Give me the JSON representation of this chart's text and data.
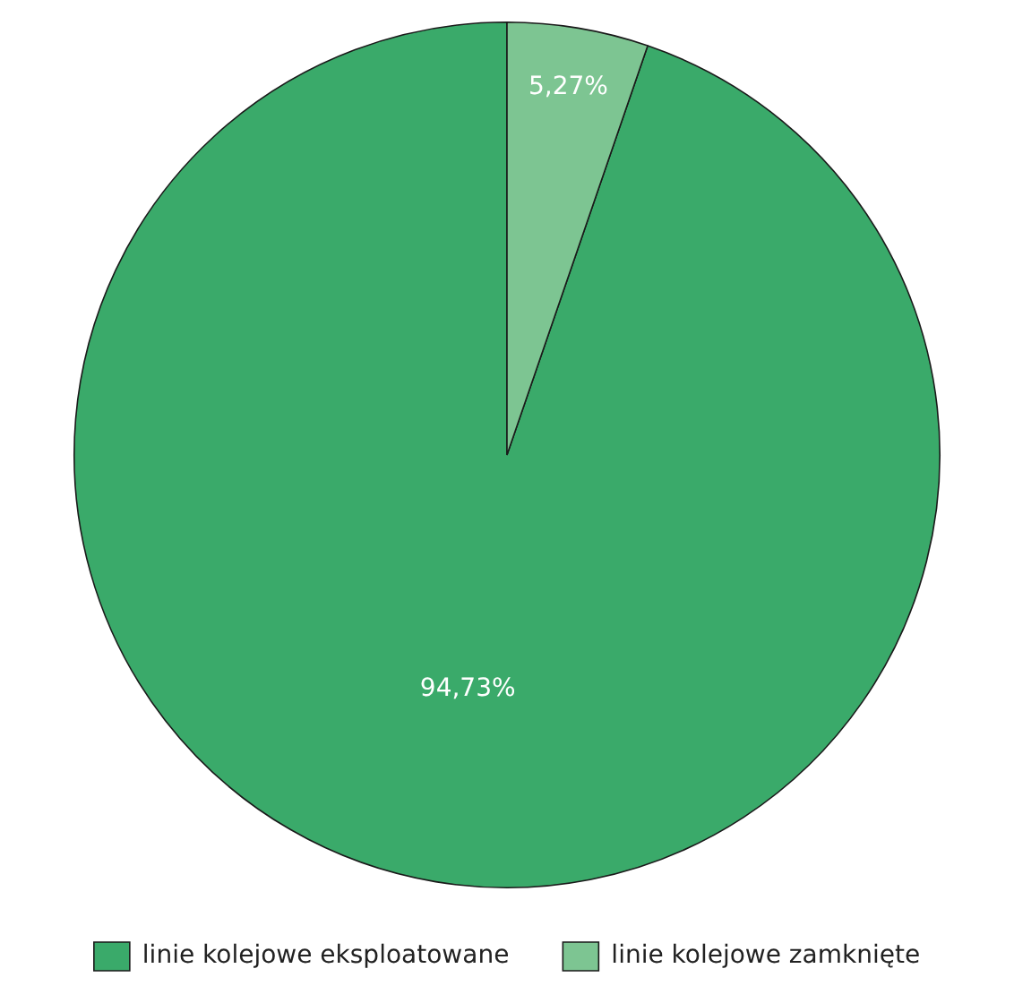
{
  "chart_data": {
    "type": "pie",
    "categories": [
      "linie kolejowe eksploatowane",
      "linie kolejowe zamknięte"
    ],
    "values": [
      94.73,
      5.27
    ],
    "value_labels": [
      "94,73%",
      "5,27%"
    ],
    "colors": [
      "#3aaa6a",
      "#7dc592"
    ],
    "legend": "bottom"
  }
}
